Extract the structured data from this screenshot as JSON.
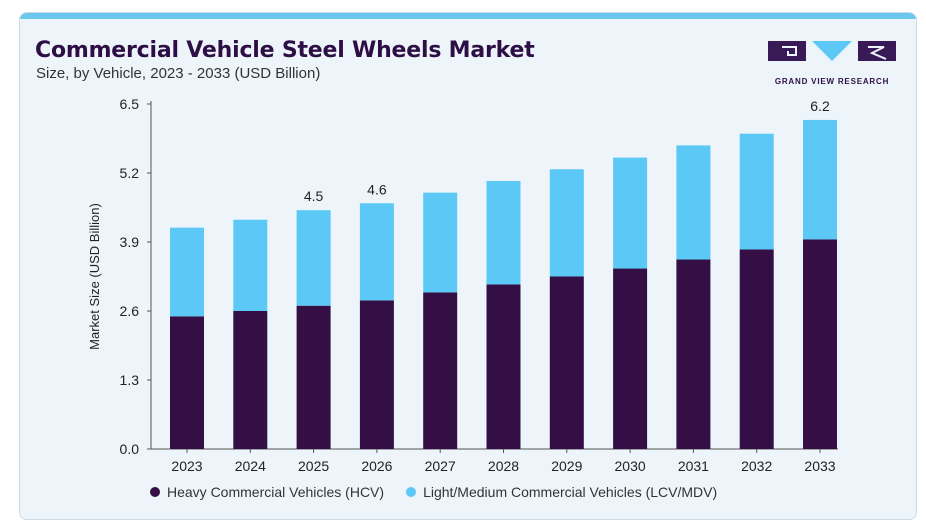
{
  "header": {
    "title": "Commercial Vehicle Steel Wheels Market",
    "subtitle": "Size, by Vehicle, 2023 - 2033 (USD Billion)"
  },
  "logo": {
    "text": "GRAND VIEW RESEARCH"
  },
  "colors": {
    "hcv": "#330f45",
    "lcv": "#5bc8f5",
    "background": "#eef5fa",
    "title": "#2d0f46"
  },
  "chart_data": {
    "type": "bar",
    "stacked": true,
    "categories": [
      "2023",
      "2024",
      "2025",
      "2026",
      "2027",
      "2028",
      "2029",
      "2030",
      "2031",
      "2032",
      "2033"
    ],
    "series": [
      {
        "name": "Heavy Commercial Vehicles (HCV)",
        "color": "#330f45",
        "values": [
          2.5,
          2.6,
          2.7,
          2.8,
          2.95,
          3.1,
          3.25,
          3.4,
          3.57,
          3.76,
          3.95
        ]
      },
      {
        "name": "Light/Medium Commercial Vehicles (LCV/MDV)",
        "color": "#5bc8f5",
        "values": [
          1.67,
          1.72,
          1.8,
          1.83,
          1.88,
          1.95,
          2.02,
          2.09,
          2.15,
          2.18,
          2.25
        ]
      }
    ],
    "totals_labels": {
      "2025": "4.5",
      "2026": "4.6",
      "2033": "6.2"
    },
    "ylabel": "Market Size (USD Billion)",
    "yticks": [
      "0.0",
      "1.3",
      "2.6",
      "3.9",
      "5.2",
      "6.5"
    ],
    "ylim": [
      0,
      6.5
    ],
    "grid": false,
    "legend": "bottom"
  }
}
